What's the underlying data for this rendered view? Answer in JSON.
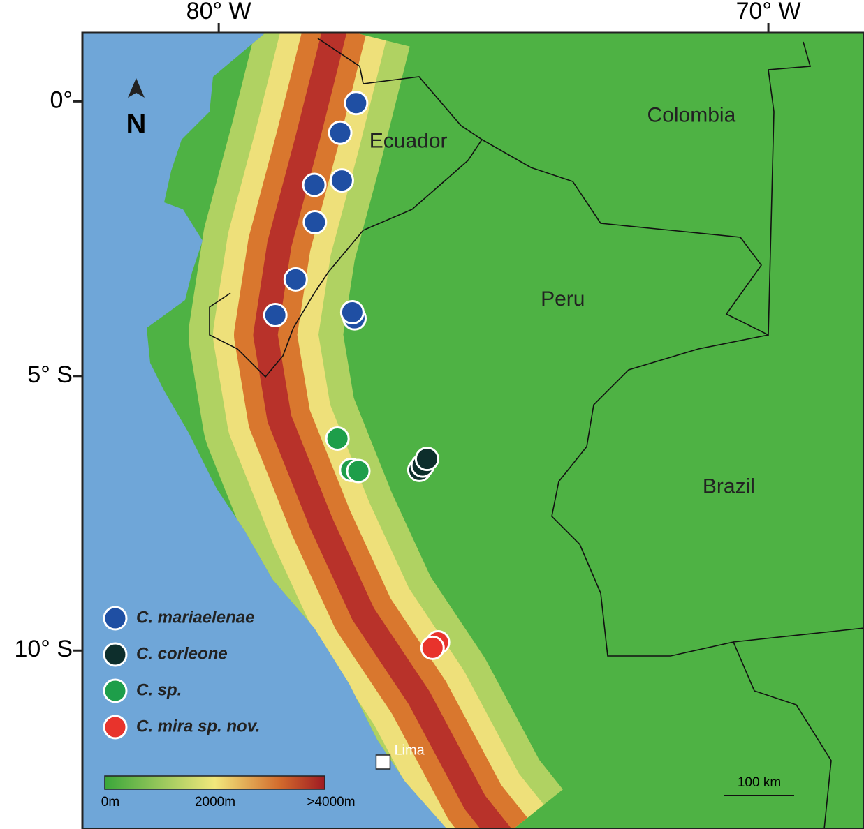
{
  "map": {
    "xlim": [
      -82.48,
      -68.26
    ],
    "ylim": [
      -13.25,
      1.25
    ],
    "xticks": [
      {
        "value": -80,
        "label": "80° W"
      },
      {
        "value": -70,
        "label": "70° W"
      }
    ],
    "yticks": [
      {
        "value": 0,
        "label": "0°"
      },
      {
        "value": -5,
        "label": "5° S"
      },
      {
        "value": -10,
        "label": "10° S"
      }
    ],
    "north": "N",
    "countries": [
      {
        "name": "Colombia",
        "lon": -71.4,
        "lat": -0.27
      },
      {
        "name": "Ecuador",
        "lon": -76.55,
        "lat": -0.74
      },
      {
        "name": "Peru",
        "lon": -73.74,
        "lat": -3.62
      },
      {
        "name": "Brazil",
        "lon": -70.72,
        "lat": -7.03
      }
    ],
    "city": {
      "name": "Lima",
      "lon": -77.01,
      "lat": -12.03
    },
    "series": [
      {
        "name": "C. mariaelenae",
        "color": "#1f4fa3",
        "points": [
          {
            "lon": -77.5,
            "lat": -0.03
          },
          {
            "lon": -77.79,
            "lat": -0.57
          },
          {
            "lon": -77.76,
            "lat": -1.44
          },
          {
            "lon": -78.26,
            "lat": -1.52
          },
          {
            "lon": -78.25,
            "lat": -2.2
          },
          {
            "lon": -78.6,
            "lat": -3.24
          },
          {
            "lon": -78.97,
            "lat": -3.89
          },
          {
            "lon": -77.53,
            "lat": -3.95
          },
          {
            "lon": -77.57,
            "lat": -3.84
          }
        ]
      },
      {
        "name": "C. corleone",
        "color": "#0d2e2c",
        "points": [
          {
            "lon": -76.35,
            "lat": -6.71
          },
          {
            "lon": -76.29,
            "lat": -6.63
          },
          {
            "lon": -76.21,
            "lat": -6.51
          }
        ]
      },
      {
        "name": "C. sp.",
        "color": "#1e9e4a",
        "points": [
          {
            "lon": -77.84,
            "lat": -6.14
          },
          {
            "lon": -77.59,
            "lat": -6.71
          },
          {
            "lon": -77.46,
            "lat": -6.73
          }
        ]
      },
      {
        "name": "C. mira sp. nov.",
        "color": "#e8332c",
        "points": [
          {
            "lon": -76.01,
            "lat": -9.85
          },
          {
            "lon": -76.11,
            "lat": -9.95
          }
        ]
      }
    ],
    "elevation_labels": [
      "0m",
      "2000m",
      ">4000m"
    ],
    "scale_label": "100 km"
  }
}
